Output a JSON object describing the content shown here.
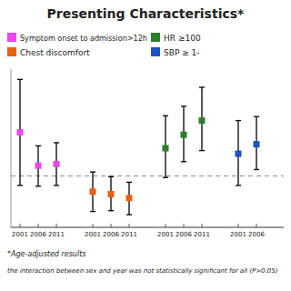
{
  "chart_data": {
    "type": "errorbar",
    "title": "Presenting Characteristics*",
    "marker": "square",
    "tick_labels": "x",
    "grid": false,
    "ylim": [
      0.35,
      2.35
    ],
    "reference_y": 1.0,
    "series": [
      {
        "name": "Symptom onset to admission>12h",
        "color": "#ee44ee",
        "categories": [
          "2001",
          "2006",
          "2011"
        ],
        "values": [
          1.55,
          1.13,
          1.15
        ],
        "lower": [
          0.88,
          0.87,
          0.88
        ],
        "upper": [
          2.22,
          1.38,
          1.42
        ]
      },
      {
        "name": "Chest discomfort",
        "color": "#e86010",
        "categories": [
          "2001",
          "2006",
          "2011"
        ],
        "values": [
          0.8,
          0.77,
          0.72
        ],
        "lower": [
          0.55,
          0.56,
          0.51
        ],
        "upper": [
          1.05,
          0.99,
          0.92
        ]
      },
      {
        "name": "HR ≥100",
        "color": "#2d7d2d",
        "categories": [
          "2001",
          "2006",
          "2011"
        ],
        "values": [
          1.35,
          1.52,
          1.7
        ],
        "lower": [
          0.98,
          1.18,
          1.32
        ],
        "upper": [
          1.76,
          1.88,
          2.12
        ]
      },
      {
        "name": "SBP ≥ 1-",
        "color": "#1a52c0",
        "categories": [
          "2001",
          "2006"
        ],
        "values": [
          1.28,
          1.4
        ],
        "lower": [
          0.88,
          1.08
        ],
        "upper": [
          1.7,
          1.75
        ]
      }
    ],
    "notes": [
      "*Age-adjusted results",
      "the interaction between sex and year was not statistically significant for all (P>0.05)"
    ]
  }
}
